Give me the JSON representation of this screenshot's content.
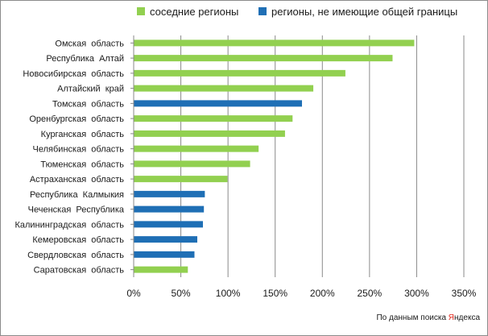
{
  "chart_data": {
    "type": "bar",
    "orientation": "horizontal",
    "title": "",
    "xlabel": "",
    "ylabel": "",
    "xlim": [
      0,
      350
    ],
    "x_ticks": [
      0,
      50,
      100,
      150,
      200,
      250,
      300,
      350
    ],
    "x_tick_labels": [
      "0%",
      "50%",
      "100%",
      "150%",
      "200%",
      "250%",
      "300%",
      "350%"
    ],
    "grid": "vertical",
    "legend_position": "top",
    "series": [
      {
        "key": "neighbor",
        "name": "соседние регионы",
        "color": "#92d050"
      },
      {
        "key": "non_neighbor",
        "name": "регионы, не имеющие общей границы",
        "color": "#1f6fb5"
      }
    ],
    "categories": [
      "Омская  область",
      "Республика  Алтай",
      "Новосибирская  область",
      "Алтайский  край",
      "Томская  область",
      "Оренбургская  область",
      "Курганская  область",
      "Челябинская  область",
      "Тюменская  область",
      "Астраханская  область",
      "Республика  Калмыкия",
      "Чеченская  Республика",
      "Калининградская  область",
      "Кемеровская  область",
      "Свердловская  область",
      "Саратовская  область"
    ],
    "values": [
      297,
      274,
      224,
      190,
      178,
      168,
      160,
      132,
      123,
      99,
      75,
      74,
      73,
      67,
      64,
      57
    ],
    "groups": [
      "neighbor",
      "neighbor",
      "neighbor",
      "neighbor",
      "non_neighbor",
      "neighbor",
      "neighbor",
      "neighbor",
      "neighbor",
      "neighbor",
      "non_neighbor",
      "non_neighbor",
      "non_neighbor",
      "non_neighbor",
      "non_neighbor",
      "neighbor"
    ]
  },
  "source": {
    "prefix": "По данным поиска ",
    "brand_first": "Я",
    "brand_rest": "ндекса"
  }
}
